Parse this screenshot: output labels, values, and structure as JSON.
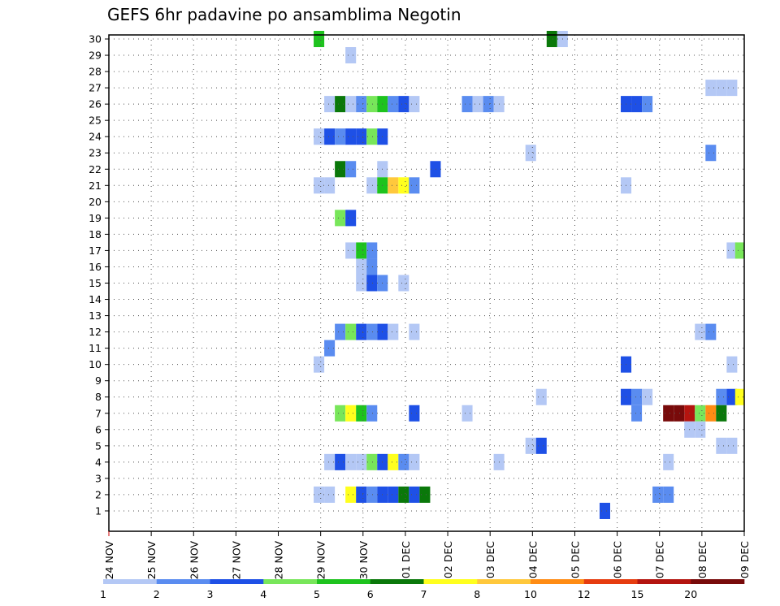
{
  "chart_data": {
    "type": "heatmap",
    "title": "GEFS 6hr padavine po ansamblima Negotin",
    "x_tick_labels": [
      "24 NOV",
      "25 NOV",
      "26 NOV",
      "27 NOV",
      "28 NOV",
      "29 NOV",
      "30 NOV",
      "01 DEC",
      "02 DEC",
      "03 DEC",
      "04 DEC",
      "05 DEC",
      "06 DEC",
      "07 DEC",
      "08 DEC",
      "09 DEC"
    ],
    "y_tick_labels": [
      "1",
      "2",
      "3",
      "4",
      "5",
      "6",
      "7",
      "8",
      "9",
      "10",
      "11",
      "12",
      "13",
      "14",
      "15",
      "16",
      "17",
      "18",
      "19",
      "20",
      "21",
      "22",
      "23",
      "24",
      "25",
      "26",
      "27",
      "28",
      "29",
      "30"
    ],
    "xlim": [
      0,
      15
    ],
    "ylim": [
      0,
      30
    ],
    "grid": true,
    "colorbar": {
      "labels": [
        "1",
        "2",
        "3",
        "4",
        "5",
        "6",
        "7",
        "8",
        "10",
        "12",
        "15",
        "20"
      ],
      "colors": [
        "#b4c8f5",
        "#5a8cf0",
        "#1e50e6",
        "#78e65a",
        "#1ec31e",
        "#0a780a",
        "#ffff1e",
        "#ffc83c",
        "#ff8c14",
        "#e63c0f",
        "#b4140f",
        "#780a0a"
      ]
    },
    "cells": [
      {
        "e": 30,
        "x": 4.96,
        "v": 5
      },
      {
        "e": 30,
        "x": 10.46,
        "v": 6
      },
      {
        "e": 30,
        "x": 10.71,
        "v": 1
      },
      {
        "e": 29,
        "x": 5.71,
        "v": 1
      },
      {
        "e": 27,
        "x": 14.21,
        "v": 1
      },
      {
        "e": 27,
        "x": 14.46,
        "v": 1
      },
      {
        "e": 27,
        "x": 14.71,
        "v": 1
      },
      {
        "e": 26,
        "x": 5.21,
        "v": 1
      },
      {
        "e": 26,
        "x": 5.46,
        "v": 6
      },
      {
        "e": 26,
        "x": 5.71,
        "v": 1
      },
      {
        "e": 26,
        "x": 5.96,
        "v": 2
      },
      {
        "e": 26,
        "x": 6.21,
        "v": 4
      },
      {
        "e": 26,
        "x": 6.46,
        "v": 5
      },
      {
        "e": 26,
        "x": 6.71,
        "v": 2
      },
      {
        "e": 26,
        "x": 6.96,
        "v": 3
      },
      {
        "e": 26,
        "x": 7.21,
        "v": 1
      },
      {
        "e": 26,
        "x": 8.46,
        "v": 2
      },
      {
        "e": 26,
        "x": 8.71,
        "v": 1
      },
      {
        "e": 26,
        "x": 8.96,
        "v": 2
      },
      {
        "e": 26,
        "x": 9.21,
        "v": 1
      },
      {
        "e": 26,
        "x": 12.21,
        "v": 3
      },
      {
        "e": 26,
        "x": 12.46,
        "v": 3
      },
      {
        "e": 26,
        "x": 12.71,
        "v": 2
      },
      {
        "e": 24,
        "x": 4.96,
        "v": 1
      },
      {
        "e": 24,
        "x": 5.21,
        "v": 3
      },
      {
        "e": 24,
        "x": 5.46,
        "v": 2
      },
      {
        "e": 24,
        "x": 5.71,
        "v": 3
      },
      {
        "e": 24,
        "x": 5.96,
        "v": 3
      },
      {
        "e": 24,
        "x": 6.21,
        "v": 4
      },
      {
        "e": 24,
        "x": 6.46,
        "v": 3
      },
      {
        "e": 23,
        "x": 9.96,
        "v": 1
      },
      {
        "e": 23,
        "x": 14.21,
        "v": 2
      },
      {
        "e": 22,
        "x": 5.46,
        "v": 6
      },
      {
        "e": 22,
        "x": 5.71,
        "v": 2
      },
      {
        "e": 22,
        "x": 6.46,
        "v": 1
      },
      {
        "e": 22,
        "x": 7.71,
        "v": 3
      },
      {
        "e": 21,
        "x": 4.96,
        "v": 1
      },
      {
        "e": 21,
        "x": 5.21,
        "v": 1
      },
      {
        "e": 21,
        "x": 6.21,
        "v": 1
      },
      {
        "e": 21,
        "x": 6.46,
        "v": 5
      },
      {
        "e": 21,
        "x": 6.71,
        "v": 8
      },
      {
        "e": 21,
        "x": 6.96,
        "v": 7
      },
      {
        "e": 21,
        "x": 7.21,
        "v": 2
      },
      {
        "e": 21,
        "x": 12.21,
        "v": 1
      },
      {
        "e": 19,
        "x": 5.46,
        "v": 4
      },
      {
        "e": 19,
        "x": 5.71,
        "v": 3
      },
      {
        "e": 17,
        "x": 5.71,
        "v": 1
      },
      {
        "e": 17,
        "x": 5.96,
        "v": 5
      },
      {
        "e": 17,
        "x": 6.21,
        "v": 2
      },
      {
        "e": 17,
        "x": 14.71,
        "v": 1
      },
      {
        "e": 17,
        "x": 14.91,
        "v": 4
      },
      {
        "e": 16,
        "x": 5.96,
        "v": 1
      },
      {
        "e": 16,
        "x": 6.21,
        "v": 2
      },
      {
        "e": 15,
        "x": 5.96,
        "v": 1
      },
      {
        "e": 15,
        "x": 6.21,
        "v": 3
      },
      {
        "e": 15,
        "x": 6.46,
        "v": 2
      },
      {
        "e": 15,
        "x": 6.96,
        "v": 1
      },
      {
        "e": 12,
        "x": 5.46,
        "v": 2
      },
      {
        "e": 12,
        "x": 5.71,
        "v": 4
      },
      {
        "e": 12,
        "x": 5.96,
        "v": 3
      },
      {
        "e": 12,
        "x": 6.21,
        "v": 2
      },
      {
        "e": 12,
        "x": 6.46,
        "v": 3
      },
      {
        "e": 12,
        "x": 6.71,
        "v": 1
      },
      {
        "e": 12,
        "x": 7.21,
        "v": 1
      },
      {
        "e": 12,
        "x": 13.96,
        "v": 1
      },
      {
        "e": 12,
        "x": 14.21,
        "v": 2
      },
      {
        "e": 11,
        "x": 5.21,
        "v": 2
      },
      {
        "e": 10,
        "x": 4.96,
        "v": 1
      },
      {
        "e": 10,
        "x": 12.21,
        "v": 3
      },
      {
        "e": 10,
        "x": 14.71,
        "v": 1
      },
      {
        "e": 8,
        "x": 10.21,
        "v": 1
      },
      {
        "e": 8,
        "x": 12.21,
        "v": 3
      },
      {
        "e": 8,
        "x": 12.46,
        "v": 2
      },
      {
        "e": 8,
        "x": 12.71,
        "v": 1
      },
      {
        "e": 8,
        "x": 14.46,
        "v": 2
      },
      {
        "e": 8,
        "x": 14.71,
        "v": 3
      },
      {
        "e": 8,
        "x": 14.91,
        "v": 7
      },
      {
        "e": 7,
        "x": 5.46,
        "v": 4
      },
      {
        "e": 7,
        "x": 5.71,
        "v": 7
      },
      {
        "e": 7,
        "x": 5.96,
        "v": 5
      },
      {
        "e": 7,
        "x": 6.21,
        "v": 2
      },
      {
        "e": 7,
        "x": 7.21,
        "v": 3
      },
      {
        "e": 7,
        "x": 8.46,
        "v": 1
      },
      {
        "e": 7,
        "x": 12.46,
        "v": 2
      },
      {
        "e": 7,
        "x": 13.21,
        "v": 20
      },
      {
        "e": 7,
        "x": 13.46,
        "v": 20
      },
      {
        "e": 7,
        "x": 13.71,
        "v": 15
      },
      {
        "e": 7,
        "x": 13.96,
        "v": 4
      },
      {
        "e": 7,
        "x": 14.21,
        "v": 10
      },
      {
        "e": 7,
        "x": 14.46,
        "v": 6
      },
      {
        "e": 6,
        "x": 13.71,
        "v": 1
      },
      {
        "e": 6,
        "x": 13.96,
        "v": 1
      },
      {
        "e": 5,
        "x": 9.96,
        "v": 1
      },
      {
        "e": 5,
        "x": 10.21,
        "v": 3
      },
      {
        "e": 5,
        "x": 14.46,
        "v": 1
      },
      {
        "e": 5,
        "x": 14.71,
        "v": 1
      },
      {
        "e": 4,
        "x": 5.21,
        "v": 1
      },
      {
        "e": 4,
        "x": 5.46,
        "v": 3
      },
      {
        "e": 4,
        "x": 5.71,
        "v": 1
      },
      {
        "e": 4,
        "x": 5.96,
        "v": 1
      },
      {
        "e": 4,
        "x": 6.21,
        "v": 4
      },
      {
        "e": 4,
        "x": 6.46,
        "v": 3
      },
      {
        "e": 4,
        "x": 6.71,
        "v": 7
      },
      {
        "e": 4,
        "x": 6.96,
        "v": 2
      },
      {
        "e": 4,
        "x": 7.21,
        "v": 1
      },
      {
        "e": 4,
        "x": 9.21,
        "v": 1
      },
      {
        "e": 4,
        "x": 13.21,
        "v": 1
      },
      {
        "e": 2,
        "x": 4.96,
        "v": 1
      },
      {
        "e": 2,
        "x": 5.21,
        "v": 1
      },
      {
        "e": 2,
        "x": 5.71,
        "v": 7
      },
      {
        "e": 2,
        "x": 5.96,
        "v": 3
      },
      {
        "e": 2,
        "x": 6.21,
        "v": 2
      },
      {
        "e": 2,
        "x": 6.46,
        "v": 3
      },
      {
        "e": 2,
        "x": 6.71,
        "v": 3
      },
      {
        "e": 2,
        "x": 6.96,
        "v": 6
      },
      {
        "e": 2,
        "x": 7.21,
        "v": 3
      },
      {
        "e": 2,
        "x": 7.46,
        "v": 6
      },
      {
        "e": 2,
        "x": 12.96,
        "v": 2
      },
      {
        "e": 2,
        "x": 13.21,
        "v": 2
      },
      {
        "e": 1,
        "x": 11.71,
        "v": 3
      }
    ]
  }
}
